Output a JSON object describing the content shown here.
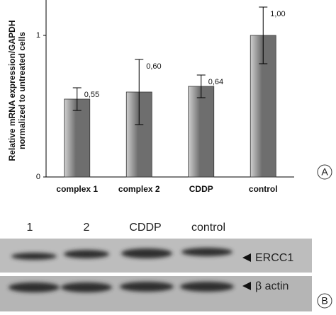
{
  "chart_data": {
    "type": "bar",
    "y_label": [
      "Relative mRNA expression/GAPDH",
      "normalized to untreated cells"
    ],
    "categories": [
      "complex 1",
      "complex 2",
      "CDDP",
      "control"
    ],
    "values": [
      0.55,
      0.6,
      0.64,
      1.0
    ],
    "value_labels": [
      "0,55",
      "0,60",
      "0,64",
      "1,00"
    ],
    "errors": [
      0.08,
      0.23,
      0.08,
      0.2
    ],
    "color": "#6e6e6e",
    "ylim": [
      0,
      1.25
    ],
    "yticks": [
      0,
      1
    ]
  },
  "panel_a": "A",
  "blot": {
    "lanes": [
      "1",
      "2",
      "CDDP",
      "control"
    ],
    "bands": [
      "ERCC1",
      "β actin"
    ]
  },
  "panel_b": "B"
}
